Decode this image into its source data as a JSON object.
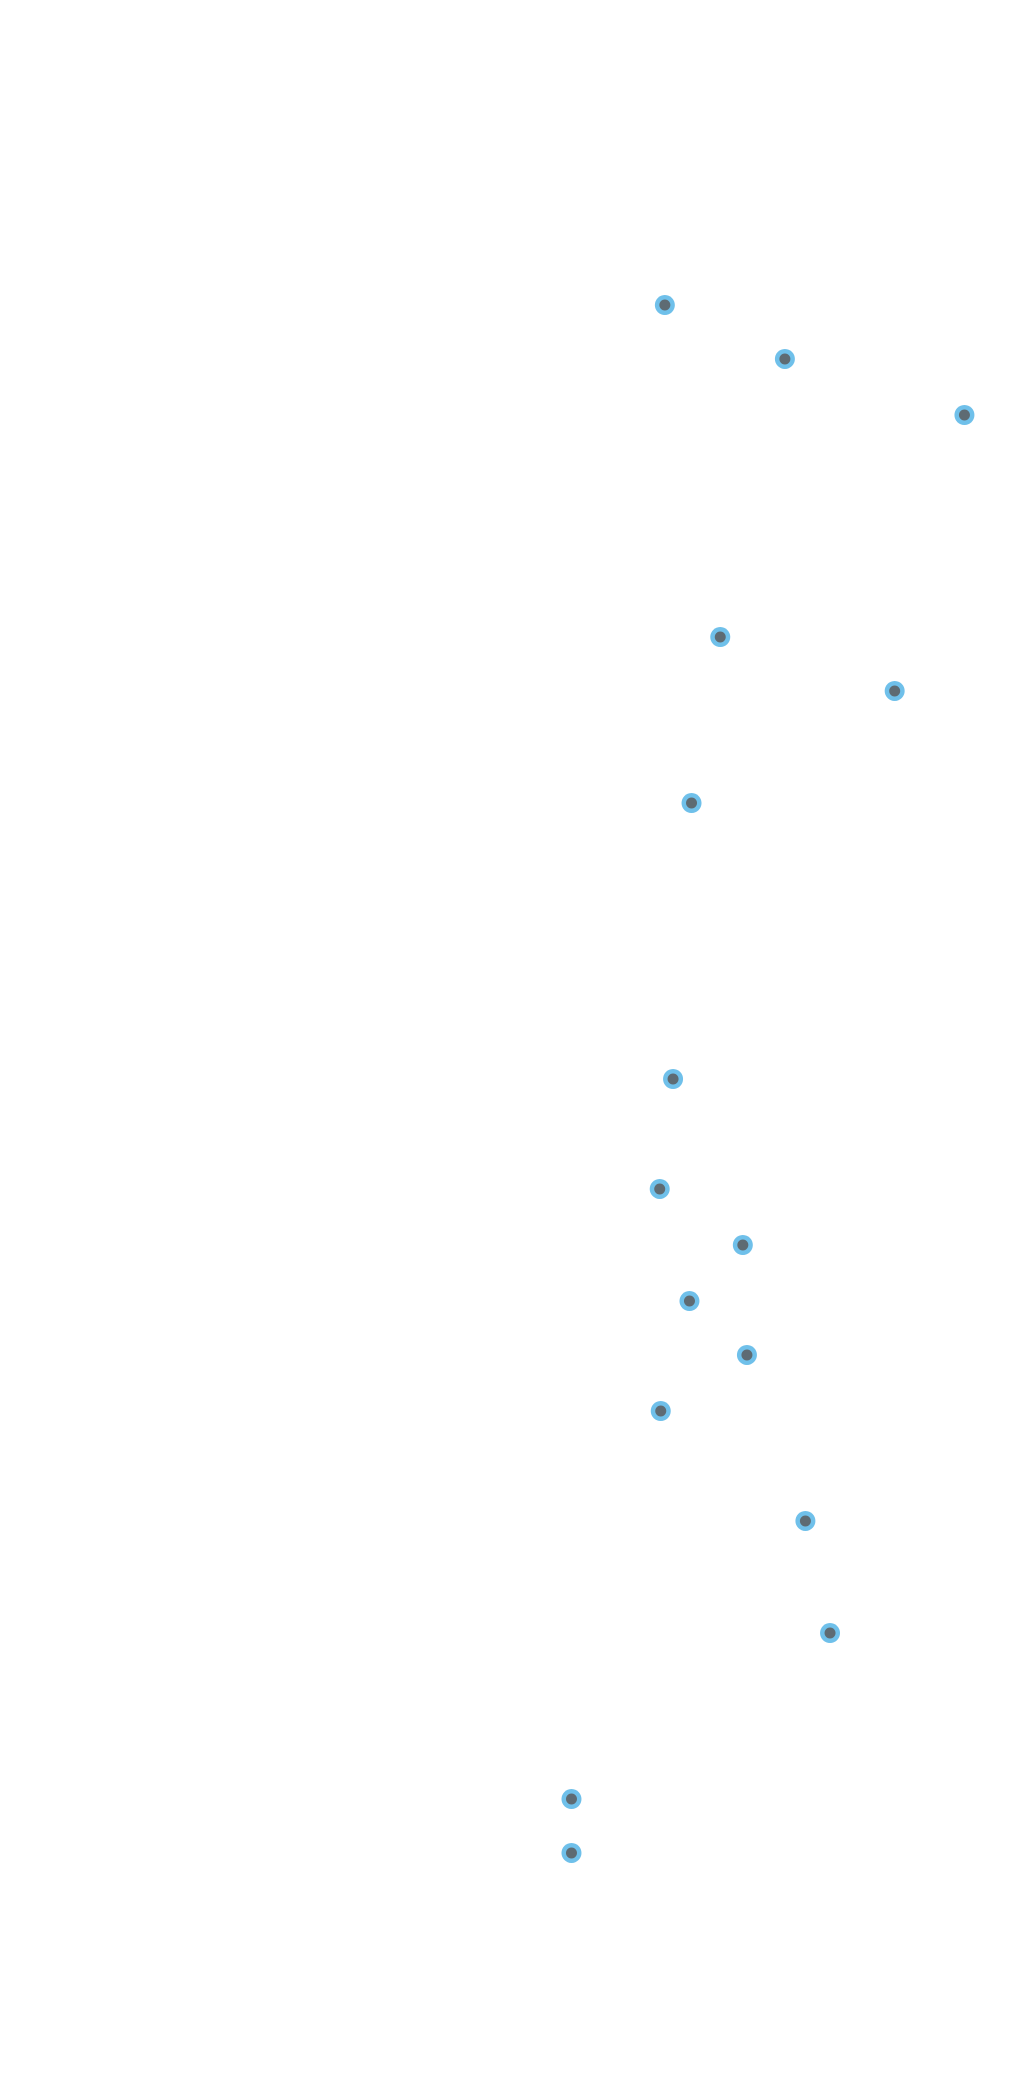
{
  "colors": {
    "background": "#ffffff",
    "marker_fill": "#5e6b73",
    "marker_ring": "#6fc0ea"
  },
  "chart_data": {
    "type": "scatter",
    "title": "",
    "xlabel": "",
    "ylabel": "",
    "grid": false,
    "legend": "none",
    "xlim": [
      0,
      100
    ],
    "ylim": [
      0,
      100
    ],
    "series": [
      {
        "points": [
          {
            "x": 64.8,
            "y": 85.3
          },
          {
            "x": 76.5,
            "y": 82.7
          },
          {
            "x": 94.0,
            "y": 80.0
          },
          {
            "x": 70.2,
            "y": 69.3
          },
          {
            "x": 87.2,
            "y": 66.7
          },
          {
            "x": 67.4,
            "y": 61.3
          },
          {
            "x": 65.6,
            "y": 48.0
          },
          {
            "x": 64.3,
            "y": 42.7
          },
          {
            "x": 72.4,
            "y": 40.0
          },
          {
            "x": 67.2,
            "y": 37.3
          },
          {
            "x": 72.8,
            "y": 34.7
          },
          {
            "x": 64.4,
            "y": 32.0
          },
          {
            "x": 78.5,
            "y": 26.7
          },
          {
            "x": 80.9,
            "y": 21.3
          },
          {
            "x": 55.7,
            "y": 13.3
          },
          {
            "x": 55.7,
            "y": 10.7
          }
        ]
      }
    ]
  }
}
